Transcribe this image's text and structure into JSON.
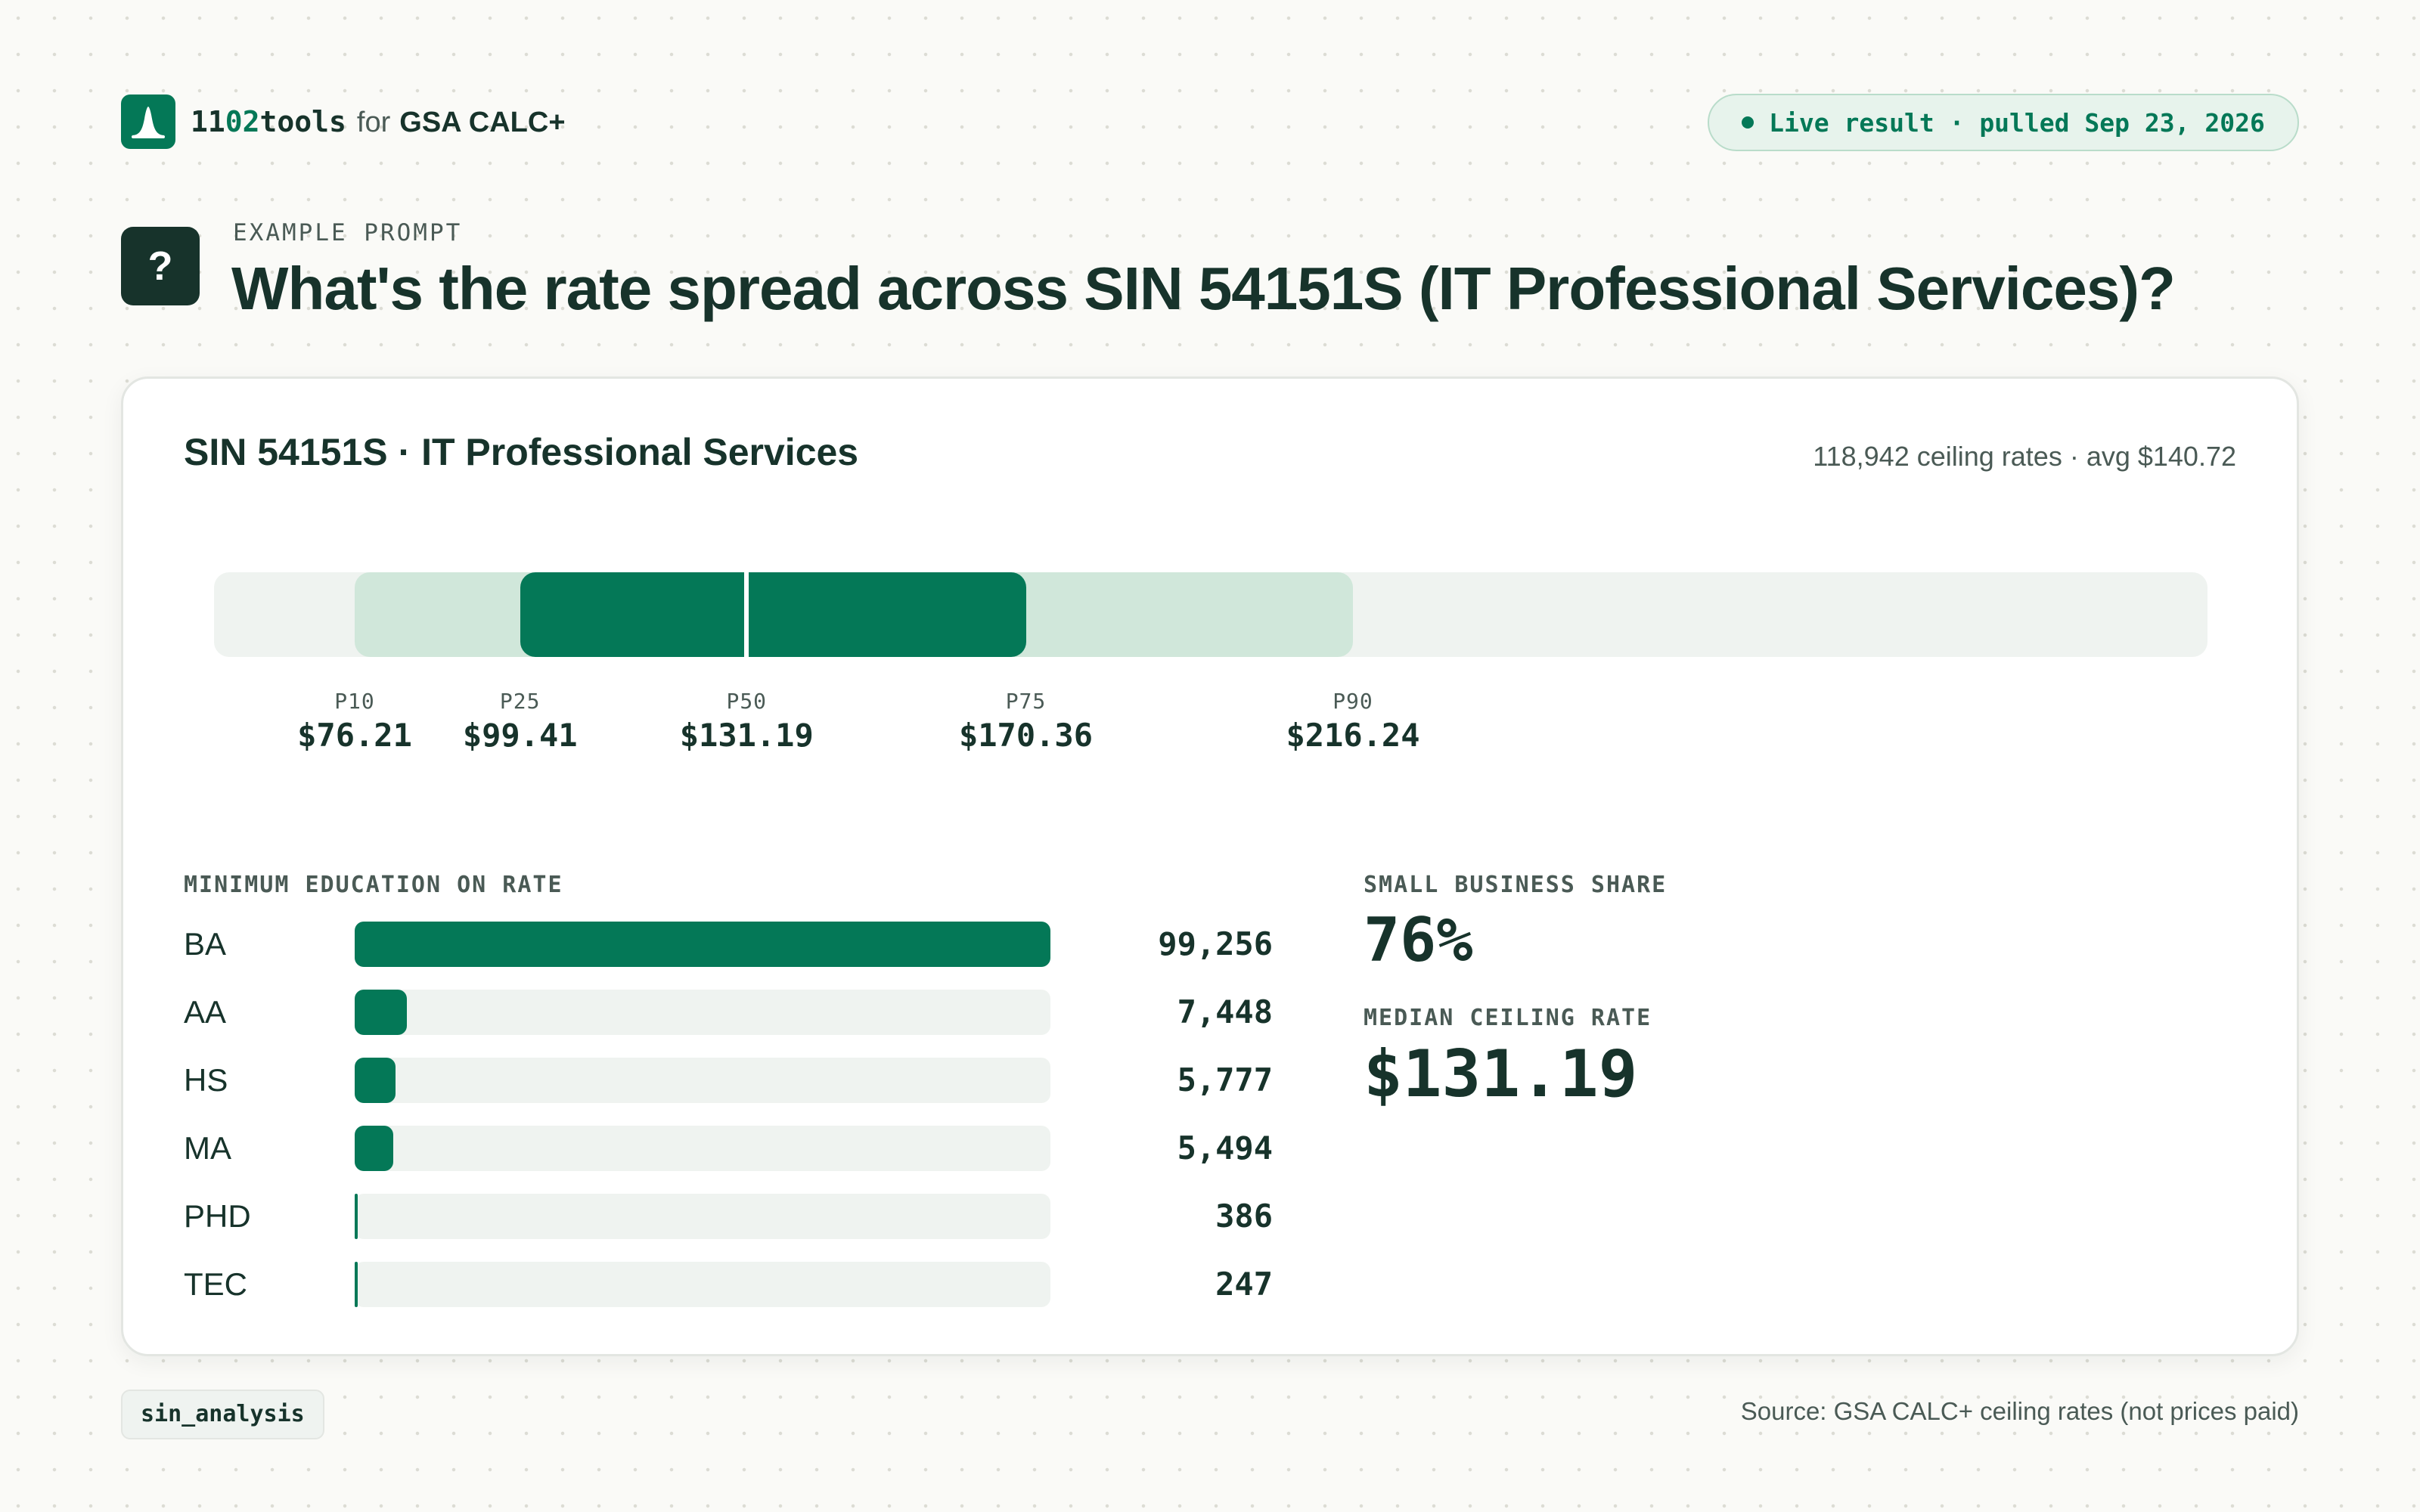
{
  "header": {
    "brand_prefix": "11",
    "brand_accent": "02",
    "brand_suffix": "tools",
    "brand_for": "for",
    "brand_product": "GSA CALC+",
    "logo_icon": "bell-curve-icon",
    "live_status": "Live result · pulled Sep 23, 2026"
  },
  "prompt": {
    "label": "EXAMPLE PROMPT",
    "icon": "question-mark-icon",
    "icon_glyph": "?",
    "text": "What's the rate spread across SIN 54151S (IT Professional Services)?"
  },
  "card": {
    "title": "SIN 54151S · IT Professional Services",
    "meta": "118,942 ceiling rates · avg $140.72"
  },
  "chart_data": [
    {
      "type": "bar",
      "name": "rate-percentiles",
      "orientation": "horizontal-range",
      "axis_range": [
        50,
        260
      ],
      "percentiles": [
        {
          "label": "P10",
          "value": 76.21,
          "display": "$76.21"
        },
        {
          "label": "P25",
          "value": 99.41,
          "display": "$99.41"
        },
        {
          "label": "P50",
          "value": 131.19,
          "display": "$131.19"
        },
        {
          "label": "P75",
          "value": 170.36,
          "display": "$170.36"
        },
        {
          "label": "P90",
          "value": 216.24,
          "display": "$216.24"
        }
      ],
      "colors": {
        "track": "#eff3f0",
        "outer": "#d0e7da",
        "inner": "#047857"
      }
    },
    {
      "type": "bar",
      "title": "MINIMUM EDUCATION ON RATE",
      "orientation": "horizontal",
      "max": 99256,
      "categories": [
        "BA",
        "AA",
        "HS",
        "MA",
        "PHD",
        "TEC"
      ],
      "values": [
        99256,
        7448,
        5777,
        5494,
        386,
        247
      ],
      "display": [
        "99,256",
        "7,448",
        "5,777",
        "5,494",
        "386",
        "247"
      ]
    }
  ],
  "stats": {
    "small_business_label": "SMALL BUSINESS SHARE",
    "small_business_value": "76%",
    "median_label": "MEDIAN CEILING RATE",
    "median_value": "$131.19"
  },
  "footer": {
    "tag": "sin_analysis",
    "source": "Source: GSA CALC+ ceiling rates (not prices paid)"
  },
  "colors": {
    "accent": "#047857",
    "text": "#17332b",
    "muted": "#4a5a55"
  }
}
